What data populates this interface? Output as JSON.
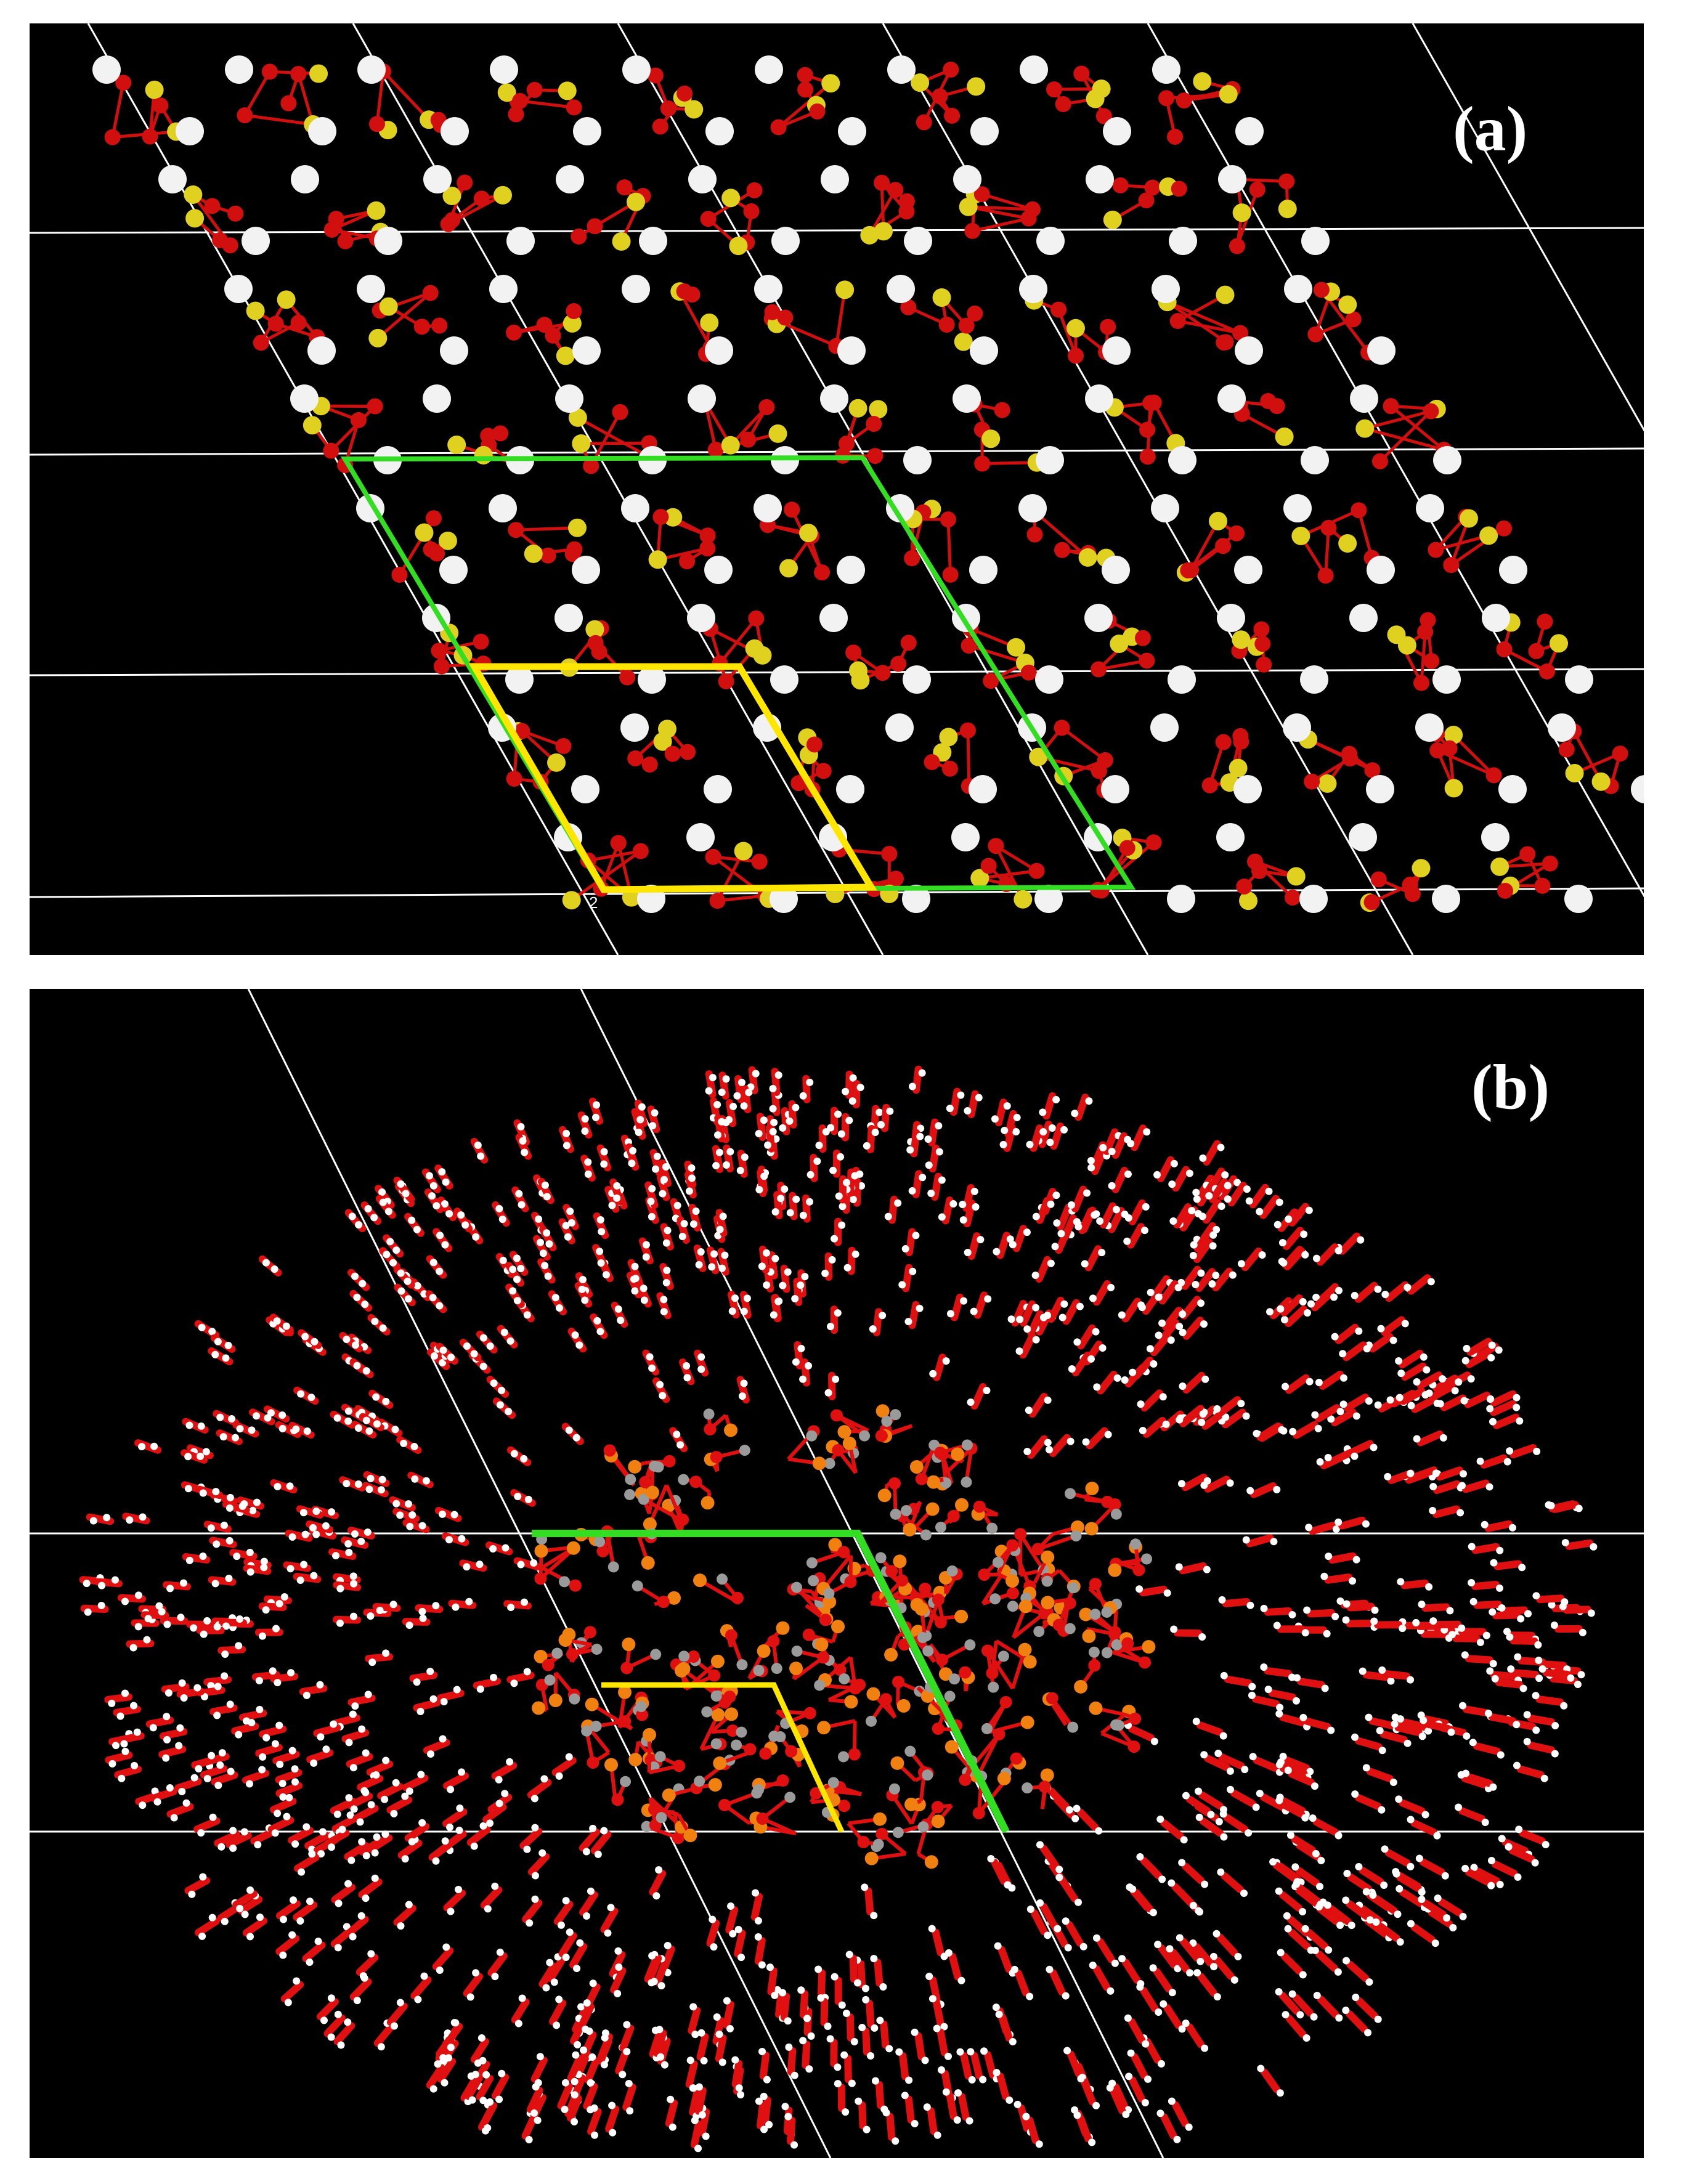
{
  "figure": {
    "panels": [
      {
        "id": "a",
        "label": "(a)",
        "axis_tick_label": "2",
        "atom_colors": {
          "oxygen": "#d10f0f",
          "sulfur_yellow": "#e0d020",
          "large_white": "#f2f2f2"
        },
        "highlight_colors": {
          "primitive_cell": "#ffe600",
          "supercell": "#33dd22"
        }
      },
      {
        "id": "b",
        "label": "(b)",
        "atom_colors": {
          "oxygen": "#e01010",
          "hydrogen": "#ffffff",
          "phosphorus_orange": "#f08010",
          "grey": "#9a9a9a"
        },
        "highlight_colors": {
          "primitive_cell": "#ffe600",
          "supercell": "#33dd22"
        }
      }
    ]
  }
}
